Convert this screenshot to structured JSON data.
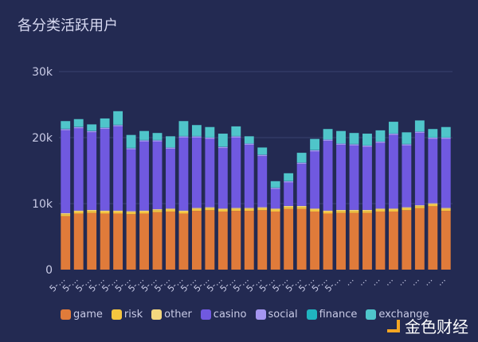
{
  "title": "各分类活跃用户",
  "watermark": "金色财经",
  "chart_data": {
    "type": "bar",
    "stacked": true,
    "title": "各分类活跃用户",
    "ylim": [
      0,
      30000
    ],
    "yticks": [
      0,
      10000,
      20000,
      30000
    ],
    "ytick_labels": [
      "0",
      "10k",
      "20k",
      "30k"
    ],
    "grid": true,
    "legend_position": "bottom",
    "categories": [
      "5-…",
      "5-…",
      "5-…",
      "5-…",
      "5-…",
      "5-…",
      "5-…",
      "5-…",
      "5-…",
      "5-…",
      "5-…",
      "5-…",
      "5-…",
      "5-…",
      "5-…",
      "5-…",
      "5-…",
      "5-…",
      "5-…",
      "5-…",
      "5-…",
      "5-…",
      "…",
      "…",
      "…",
      "…",
      "…",
      "…",
      "…",
      "…"
    ],
    "series": [
      {
        "name": "game",
        "color": "#e07b3a",
        "values": [
          8100,
          8500,
          8600,
          8500,
          8500,
          8400,
          8500,
          8700,
          8800,
          8500,
          8900,
          9000,
          8800,
          8900,
          8900,
          9000,
          8800,
          9200,
          9200,
          8800,
          8500,
          8600,
          8600,
          8600,
          8800,
          8800,
          9000,
          9300,
          9600,
          8900
        ]
      },
      {
        "name": "risk",
        "color": "#f5c53f",
        "values": [
          300,
          300,
          300,
          300,
          300,
          300,
          300,
          300,
          300,
          300,
          300,
          300,
          300,
          300,
          300,
          300,
          300,
          300,
          300,
          300,
          300,
          300,
          300,
          300,
          300,
          300,
          300,
          300,
          300,
          300
        ]
      },
      {
        "name": "other",
        "color": "#f3d77f",
        "values": [
          150,
          150,
          150,
          150,
          150,
          150,
          150,
          150,
          150,
          150,
          150,
          150,
          150,
          150,
          150,
          150,
          150,
          150,
          150,
          150,
          150,
          150,
          150,
          150,
          150,
          150,
          150,
          150,
          150,
          150
        ]
      },
      {
        "name": "casino",
        "color": "#7059e0",
        "values": [
          12550,
          12450,
          11750,
          12350,
          12750,
          9350,
          10450,
          10250,
          9050,
          11050,
          10650,
          10350,
          9150,
          10650,
          9550,
          7750,
          2950,
          3550,
          6350,
          8650,
          10550,
          9850,
          9750,
          9550,
          9950,
          11150,
          9350,
          10950,
          9750,
          10450
        ]
      },
      {
        "name": "social",
        "color": "#a495f0",
        "values": [
          200,
          200,
          200,
          200,
          200,
          200,
          200,
          200,
          200,
          200,
          200,
          200,
          200,
          200,
          200,
          200,
          200,
          200,
          200,
          200,
          200,
          200,
          200,
          200,
          200,
          200,
          200,
          200,
          200,
          200
        ]
      },
      {
        "name": "finance",
        "color": "#20b4c0",
        "values": [
          50,
          50,
          50,
          50,
          50,
          50,
          50,
          50,
          50,
          50,
          50,
          50,
          50,
          50,
          50,
          50,
          50,
          50,
          50,
          50,
          50,
          50,
          50,
          50,
          50,
          50,
          50,
          50,
          50,
          50
        ]
      },
      {
        "name": "exchange",
        "color": "#4fc5ca",
        "values": [
          1150,
          1150,
          950,
          1350,
          2050,
          1950,
          1350,
          1050,
          1650,
          2250,
          1650,
          1550,
          1950,
          1450,
          1050,
          1050,
          950,
          1150,
          1450,
          1650,
          1550,
          1850,
          1650,
          1750,
          1650,
          1750,
          1750,
          1650,
          1250,
          1550
        ]
      }
    ]
  }
}
